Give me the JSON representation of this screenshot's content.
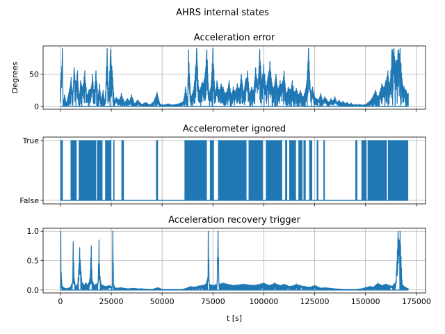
{
  "figure_title": "AHRS internal states",
  "colors": {
    "series": "#1f77b4",
    "grid": "#b0b0b0",
    "axes": "#000000"
  },
  "chart_data": [
    {
      "type": "line",
      "title": "Acceleration error",
      "xlabel": "",
      "ylabel": "Degrees",
      "xlim": [
        -8500,
        179500
      ],
      "ylim": [
        -4.5,
        94
      ],
      "yticks": [
        0,
        50
      ],
      "ytick_labels": [
        "0",
        "50"
      ],
      "grid": true,
      "x": [
        0,
        1000,
        1300,
        2000,
        3000,
        4200,
        5300,
        6000,
        6800,
        7500,
        8400,
        9200,
        10000,
        11000,
        12000,
        13000,
        14000,
        15200,
        15800,
        16500,
        17500,
        18500,
        19300,
        20000,
        21000,
        22000,
        23000,
        23800,
        24600,
        25500,
        26500,
        27500,
        29000,
        30000,
        31500,
        33000,
        34000,
        35000,
        36500,
        38000,
        40000,
        42000,
        44000,
        46000,
        47500,
        49000,
        51000,
        53000,
        55000,
        57000,
        59000,
        60500,
        61500,
        62500,
        63000,
        64000,
        65000,
        66000,
        67000,
        68000,
        69500,
        71000,
        72000,
        73000,
        74000,
        75000,
        76000,
        77000,
        78000,
        79000,
        80000,
        81000,
        82000,
        83000,
        84000,
        85000,
        86000,
        87000,
        88000,
        89000,
        90000,
        91000,
        92000,
        93000,
        94000,
        95000,
        96000,
        97000,
        98000,
        99000,
        100000,
        101000,
        102000,
        103000,
        104000,
        105000,
        106000,
        107000,
        108000,
        109000,
        110000,
        111000,
        112000,
        113000,
        114000,
        115000,
        116000,
        117000,
        118000,
        119000,
        120000,
        121000,
        122000,
        123000,
        124000,
        125000,
        126000,
        127000,
        128000,
        129000,
        130000,
        131000,
        132000,
        133000,
        134000,
        135000,
        136000,
        137000,
        138000,
        139000,
        140000,
        141000,
        142000,
        143000,
        144000,
        145000,
        146000,
        147000,
        148000,
        149000,
        150000,
        151000,
        152000,
        153000,
        154000,
        155000,
        156000,
        157000,
        158000,
        159000,
        160000,
        161000,
        162000,
        163000,
        164000,
        165000,
        166000,
        167000,
        168000,
        169000,
        170000,
        171000
      ],
      "y": [
        30,
        90,
        2,
        18,
        4,
        22,
        45,
        20,
        60,
        35,
        55,
        12,
        40,
        30,
        55,
        18,
        25,
        30,
        50,
        20,
        55,
        15,
        35,
        10,
        25,
        5,
        90,
        12,
        88,
        55,
        8,
        14,
        10,
        20,
        6,
        12,
        8,
        18,
        4,
        10,
        3,
        6,
        2,
        8,
        22,
        3,
        2,
        4,
        2,
        3,
        5,
        8,
        30,
        10,
        88,
        15,
        20,
        40,
        90,
        25,
        35,
        45,
        88,
        20,
        30,
        90,
        20,
        40,
        25,
        35,
        30,
        20,
        25,
        40,
        18,
        30,
        22,
        35,
        28,
        50,
        20,
        40,
        55,
        18,
        30,
        25,
        60,
        35,
        88,
        40,
        65,
        30,
        45,
        70,
        35,
        28,
        50,
        25,
        40,
        35,
        55,
        20,
        30,
        25,
        40,
        22,
        28,
        18,
        25,
        15,
        20,
        35,
        90,
        22,
        30,
        15,
        12,
        10,
        20,
        8,
        15,
        10,
        6,
        12,
        8,
        15,
        6,
        10,
        5,
        8,
        4,
        6,
        3,
        5,
        2,
        3,
        2,
        3,
        2,
        2,
        3,
        5,
        8,
        12,
        18,
        25,
        15,
        22,
        35,
        30,
        40,
        55,
        30,
        88,
        90,
        70,
        88,
        90,
        40,
        30,
        25,
        20
      ],
      "noise_amplitude": 14
    },
    {
      "type": "step",
      "title": "Accelerometer ignored",
      "xlabel": "",
      "ylabel": "",
      "xlim": [
        -8500,
        179500
      ],
      "ylim": [
        -0.06,
        1.06
      ],
      "yticks": [
        0,
        1
      ],
      "ytick_labels": [
        "False",
        "True"
      ],
      "grid": true,
      "x_true_intervals": [
        [
          0,
          1200
        ],
        [
          5000,
          8000
        ],
        [
          9000,
          17600
        ],
        [
          18000,
          20700
        ],
        [
          22000,
          25000
        ],
        [
          26000,
          26600
        ],
        [
          30000,
          31200
        ],
        [
          47000,
          48000
        ],
        [
          61000,
          72000
        ],
        [
          73500,
          75500
        ],
        [
          77500,
          91500
        ],
        [
          92500,
          99500
        ],
        [
          101000,
          109000
        ],
        [
          110500,
          111500
        ],
        [
          112500,
          115800
        ],
        [
          117000,
          119000
        ],
        [
          119500,
          120600
        ],
        [
          122300,
          123800
        ],
        [
          126000,
          126800
        ],
        [
          129300,
          130000
        ],
        [
          145000,
          146000
        ],
        [
          148000,
          150500
        ],
        [
          151000,
          160500
        ],
        [
          161000,
          171000
        ]
      ]
    },
    {
      "type": "line",
      "title": "Acceleration recovery trigger",
      "xlabel": "t [s]",
      "ylabel": "",
      "xlim": [
        -8500,
        179500
      ],
      "ylim": [
        -0.05,
        1.05
      ],
      "yticks": [
        0.0,
        0.5,
        1.0
      ],
      "ytick_labels": [
        "0.0",
        "0.5",
        "1.0"
      ],
      "xticks": [
        0,
        25000,
        50000,
        75000,
        100000,
        125000,
        150000,
        175000
      ],
      "xtick_labels": [
        "0",
        "25000",
        "50000",
        "75000",
        "100000",
        "125000",
        "150000",
        "175000"
      ],
      "grid": true,
      "x": [
        0,
        200,
        400,
        800,
        1500,
        3000,
        5000,
        6000,
        6300,
        6800,
        7500,
        8500,
        9500,
        10500,
        11500,
        12500,
        13500,
        14500,
        15200,
        15500,
        16500,
        17500,
        18500,
        19000,
        19300,
        20000,
        22000,
        24000,
        25500,
        25800,
        26200,
        27000,
        30000,
        33000,
        36000,
        38000,
        40000,
        45000,
        48000,
        50000,
        55000,
        60000,
        62000,
        64000,
        66000,
        68000,
        70000,
        71500,
        72500,
        72700,
        73200,
        75000,
        77000,
        77500,
        78000,
        80000,
        85000,
        90000,
        95000,
        100000,
        103000,
        105000,
        108000,
        110000,
        113000,
        116000,
        120000,
        123000,
        125000,
        128000,
        130000,
        135000,
        140000,
        145000,
        148000,
        150000,
        152000,
        154000,
        156000,
        158000,
        160000,
        162000,
        163000,
        164000,
        165000,
        166000,
        166500,
        167000,
        168000,
        169000,
        170000,
        171000
      ],
      "y": [
        0.05,
        1.0,
        0.3,
        0.08,
        0.04,
        0.02,
        0.05,
        0.15,
        0.82,
        0.2,
        0.06,
        0.1,
        0.72,
        0.15,
        0.08,
        0.12,
        0.08,
        0.2,
        0.75,
        0.2,
        0.08,
        0.1,
        0.12,
        0.85,
        0.3,
        0.1,
        0.06,
        0.08,
        0.05,
        1.0,
        0.1,
        0.03,
        0.04,
        0.02,
        0.03,
        0.02,
        0.02,
        0.01,
        0.04,
        0.01,
        0.01,
        0.01,
        0.03,
        0.06,
        0.05,
        0.07,
        0.08,
        0.1,
        0.22,
        1.0,
        0.1,
        0.08,
        0.1,
        1.0,
        0.1,
        0.12,
        0.08,
        0.1,
        0.08,
        0.12,
        0.08,
        0.12,
        0.08,
        0.1,
        0.06,
        0.1,
        0.06,
        0.05,
        0.08,
        0.03,
        0.04,
        0.02,
        0.01,
        0.01,
        0.02,
        0.04,
        0.06,
        0.05,
        0.12,
        0.08,
        0.1,
        0.08,
        0.06,
        0.1,
        0.15,
        1.0,
        0.85,
        1.0,
        0.1,
        0.06,
        0.04,
        0.02
      ],
      "noise_amplitude": 0.08
    }
  ]
}
